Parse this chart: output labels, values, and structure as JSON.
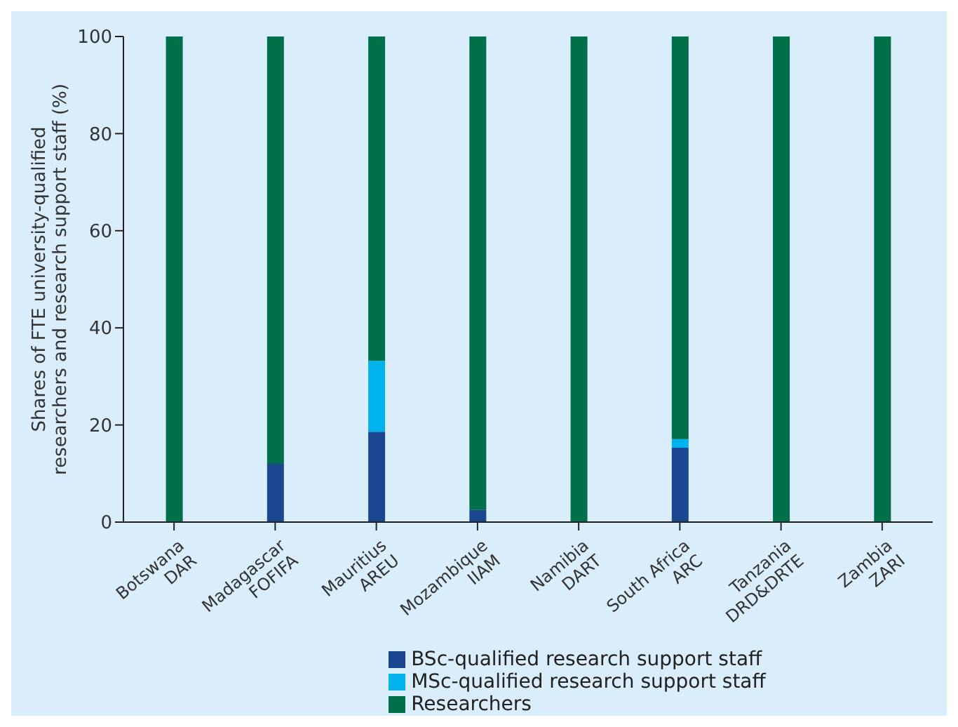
{
  "chart_data": {
    "type": "bar",
    "stacked": true,
    "ylabel": "Shares of FTE university-qualified\nresearchers and research support staff (%)",
    "categories": [
      "Botswana\nDAR",
      "Madagascar\nFOFIFA",
      "Mauritius\nAREU",
      "Mozambique\nIIAM",
      "Namibia\nDART",
      "South Africa\nARC",
      "Tanzania\nDRD&DRTE",
      "Zambia\nZARI"
    ],
    "series": [
      {
        "name": "BSc-qualified research support staff",
        "color": "#1b4690",
        "values": [
          0,
          12,
          18.6,
          2.5,
          0,
          15.3,
          0,
          0
        ]
      },
      {
        "name": "MSc-qualified research support staff",
        "color": "#00b3ec",
        "values": [
          0,
          0,
          14.6,
          0,
          0,
          1.8,
          0,
          0
        ]
      },
      {
        "name": "Researchers",
        "color": "#00704a",
        "values": [
          100,
          88,
          66.8,
          97.5,
          100,
          82.9,
          100,
          100
        ]
      }
    ],
    "ylim": [
      0,
      100
    ],
    "yticks": [
      0,
      20,
      40,
      60,
      80,
      100
    ],
    "grid": false,
    "legend": "bottom"
  }
}
